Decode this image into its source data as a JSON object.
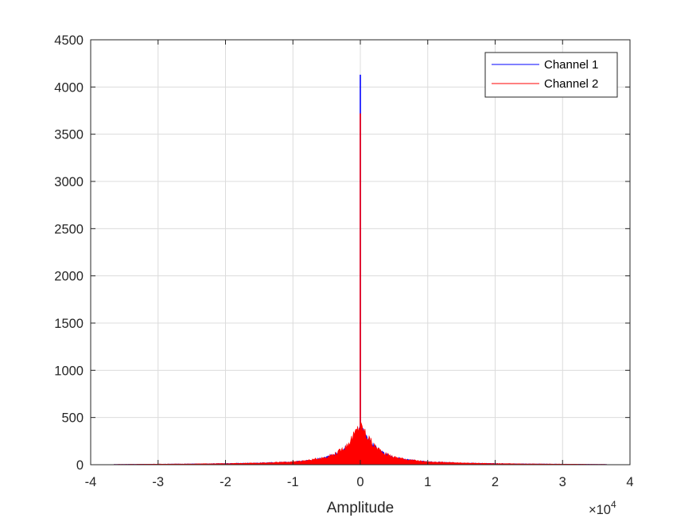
{
  "chart_data": {
    "type": "histogram",
    "xlabel": "Amplitude",
    "x_exponent": {
      "base": "×10",
      "power": "4"
    },
    "xlim": [
      -40000,
      40000
    ],
    "ylim": [
      0,
      4500
    ],
    "x_ticks": [
      -40000,
      -30000,
      -20000,
      -10000,
      0,
      10000,
      20000,
      30000,
      40000
    ],
    "x_tick_labels": [
      "-4",
      "-3",
      "-2",
      "-1",
      "0",
      "1",
      "2",
      "3",
      "4"
    ],
    "y_ticks": [
      0,
      500,
      1000,
      1500,
      2000,
      2500,
      3000,
      3500,
      4000,
      4500
    ],
    "y_tick_labels": [
      "0",
      "500",
      "1000",
      "1500",
      "2000",
      "2500",
      "3000",
      "3500",
      "4000",
      "4500"
    ],
    "grid": true,
    "legend_position": "top-right",
    "series": [
      {
        "name": "Channel 1",
        "color": "#0000ff",
        "peak": {
          "x": 0,
          "y": 4130
        },
        "envelope_x": [
          -36500,
          -30000,
          -25000,
          -20000,
          -15000,
          -10000,
          -7500,
          -5000,
          -3500,
          -2000,
          -1000,
          -300,
          0,
          300,
          1000,
          2000,
          3500,
          5000,
          7500,
          10000,
          15000,
          20000,
          25000,
          30000,
          36500
        ],
        "envelope_y": [
          3,
          6,
          8,
          12,
          18,
          30,
          45,
          75,
          115,
          190,
          280,
          360,
          380,
          360,
          280,
          190,
          115,
          75,
          45,
          30,
          18,
          12,
          8,
          6,
          3
        ]
      },
      {
        "name": "Channel 2",
        "color": "#ff0000",
        "peak": {
          "x": 0,
          "y": 3720
        },
        "envelope_x": [
          -36500,
          -30000,
          -25000,
          -20000,
          -15000,
          -10000,
          -7500,
          -5000,
          -3500,
          -2000,
          -1000,
          -300,
          0,
          300,
          1000,
          2000,
          3500,
          5000,
          7500,
          10000,
          15000,
          20000,
          25000,
          30000,
          36500
        ],
        "envelope_y": [
          3,
          6,
          8,
          12,
          18,
          30,
          48,
          80,
          120,
          200,
          300,
          385,
          400,
          385,
          300,
          200,
          120,
          80,
          48,
          30,
          18,
          12,
          8,
          6,
          3
        ]
      }
    ]
  }
}
